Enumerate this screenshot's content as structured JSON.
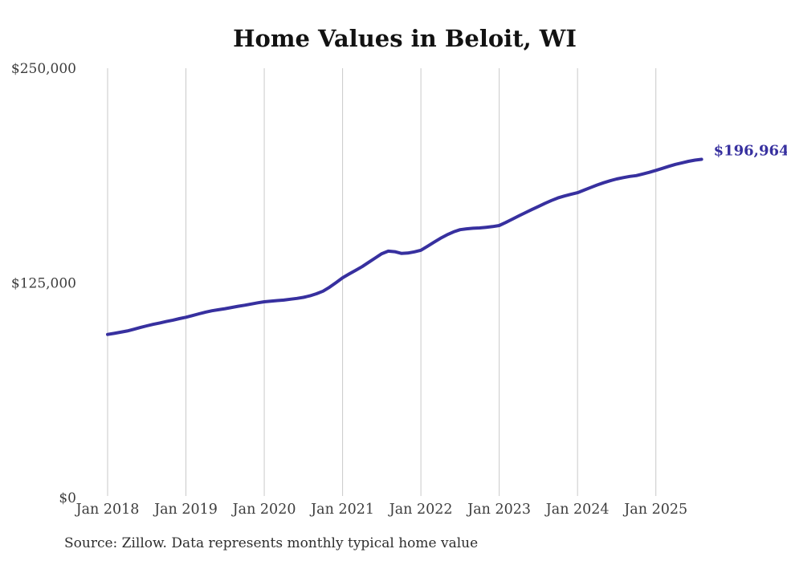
{
  "title": "Home Values in Beloit, WI",
  "annotation": {
    "end_value_label": "$196,964"
  },
  "source_note": "Source: Zillow. Data represents monthly typical home value",
  "colors": {
    "line": "#37309f",
    "annotation_text": "#37309f",
    "gridline": "#c9c9c9",
    "title_text": "#121212",
    "axis_label_text": "#3d3d3d",
    "source_text": "#2e2e2e",
    "background": "#ffffff"
  },
  "chart_data": {
    "type": "line",
    "title": "Home Values in Beloit, WI",
    "xlabel": "",
    "ylabel": "",
    "ylim": [
      0,
      250000
    ],
    "grid": "vertical-only",
    "legend": "none",
    "series_name": "Typical home value (monthly)",
    "last_point_label": "$196,964",
    "yticks": [
      {
        "value": 0,
        "label": "$0"
      },
      {
        "value": 125000,
        "label": "$125,000"
      },
      {
        "value": 250000,
        "label": "$250,000"
      }
    ],
    "xticks": [
      {
        "month_index": 0,
        "label": "Jan 2018"
      },
      {
        "month_index": 12,
        "label": "Jan 2019"
      },
      {
        "month_index": 24,
        "label": "Jan 2020"
      },
      {
        "month_index": 36,
        "label": "Jan 2021"
      },
      {
        "month_index": 48,
        "label": "Jan 2022"
      },
      {
        "month_index": 60,
        "label": "Jan 2023"
      },
      {
        "month_index": 72,
        "label": "Jan 2024"
      },
      {
        "month_index": 84,
        "label": "Jan 2025"
      }
    ],
    "x": [
      "2018-01",
      "2018-02",
      "2018-03",
      "2018-04",
      "2018-05",
      "2018-06",
      "2018-07",
      "2018-08",
      "2018-09",
      "2018-10",
      "2018-11",
      "2018-12",
      "2019-01",
      "2019-02",
      "2019-03",
      "2019-04",
      "2019-05",
      "2019-06",
      "2019-07",
      "2019-08",
      "2019-09",
      "2019-10",
      "2019-11",
      "2019-12",
      "2020-01",
      "2020-02",
      "2020-03",
      "2020-04",
      "2020-05",
      "2020-06",
      "2020-07",
      "2020-08",
      "2020-09",
      "2020-10",
      "2020-11",
      "2020-12",
      "2021-01",
      "2021-02",
      "2021-03",
      "2021-04",
      "2021-05",
      "2021-06",
      "2021-07",
      "2021-08",
      "2021-09",
      "2021-10",
      "2021-11",
      "2021-12",
      "2022-01",
      "2022-02",
      "2022-03",
      "2022-04",
      "2022-05",
      "2022-06",
      "2022-07",
      "2022-08",
      "2022-09",
      "2022-10",
      "2022-11",
      "2022-12",
      "2023-01",
      "2023-02",
      "2023-03",
      "2023-04",
      "2023-05",
      "2023-06",
      "2023-07",
      "2023-08",
      "2023-09",
      "2023-10",
      "2023-11",
      "2023-12",
      "2024-01",
      "2024-02",
      "2024-03",
      "2024-04",
      "2024-05",
      "2024-06",
      "2024-07",
      "2024-08",
      "2024-09",
      "2024-10",
      "2024-11",
      "2024-12",
      "2025-01",
      "2025-02",
      "2025-03",
      "2025-04",
      "2025-05",
      "2025-06",
      "2025-07",
      "2025-08"
    ],
    "values": [
      95000,
      95600,
      96300,
      97000,
      98000,
      99000,
      100000,
      100900,
      101700,
      102500,
      103300,
      104200,
      105000,
      106000,
      107000,
      108000,
      108800,
      109400,
      110000,
      110700,
      111400,
      112000,
      112700,
      113400,
      114000,
      114400,
      114700,
      115000,
      115500,
      116000,
      116600,
      117500,
      118700,
      120200,
      122500,
      125200,
      128000,
      130200,
      132300,
      134500,
      137000,
      139500,
      142000,
      143500,
      143200,
      142200,
      142400,
      143100,
      144000,
      146300,
      148700,
      151000,
      153000,
      154700,
      156000,
      156500,
      156800,
      157000,
      157400,
      157800,
      158400,
      160200,
      162100,
      164000,
      165900,
      167700,
      169500,
      171300,
      173000,
      174500,
      175600,
      176600,
      177500,
      179000,
      180500,
      182000,
      183300,
      184500,
      185500,
      186300,
      187000,
      187500,
      188400,
      189400,
      190500,
      191700,
      192900,
      194000,
      194900,
      195800,
      196500,
      196964
    ]
  }
}
